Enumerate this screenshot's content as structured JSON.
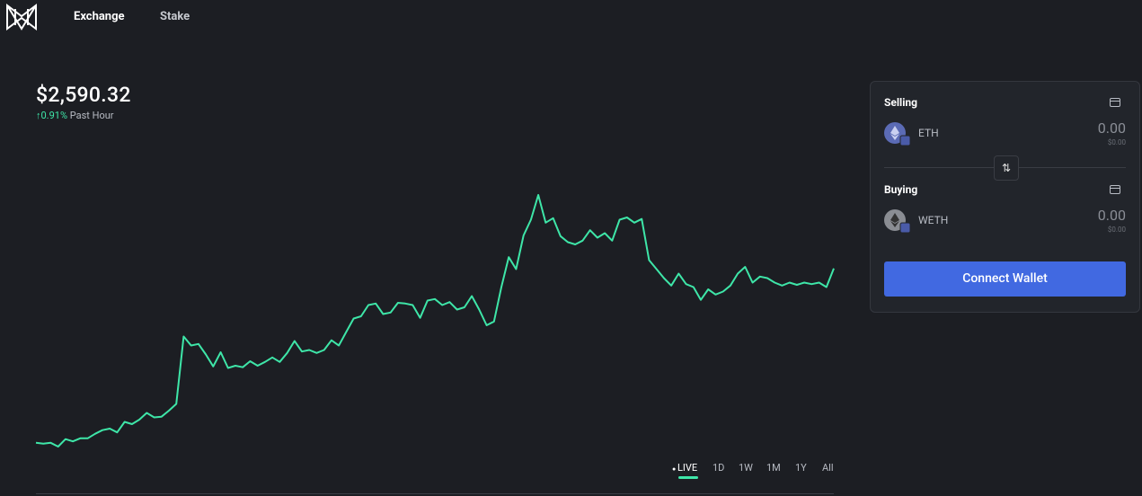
{
  "nav": {
    "items": [
      "Exchange",
      "Stake"
    ]
  },
  "price": {
    "amount": "$2,590.32",
    "change": "0.91%",
    "change_label": "Past Hour"
  },
  "chart": {
    "type": "line",
    "color": "#3ee6a8",
    "values": [
      2567.0,
      2566.9,
      2567.0,
      2566.5,
      2567.5,
      2567.2,
      2567.6,
      2567.6,
      2568.2,
      2568.7,
      2568.9,
      2568.4,
      2569.8,
      2569.5,
      2570.1,
      2571.0,
      2570.4,
      2570.5,
      2571.3,
      2572.2,
      2581.2,
      2580.0,
      2580.2,
      2578.8,
      2577.2,
      2579.1,
      2577.0,
      2577.3,
      2577.1,
      2577.9,
      2577.3,
      2577.8,
      2578.4,
      2577.8,
      2579.0,
      2580.6,
      2579.2,
      2579.4,
      2579.0,
      2579.4,
      2580.7,
      2580.0,
      2581.8,
      2583.6,
      2583.9,
      2585.4,
      2585.6,
      2584.2,
      2584.4,
      2585.7,
      2585.6,
      2585.4,
      2583.7,
      2586.0,
      2586.2,
      2585.4,
      2585.8,
      2584.8,
      2585.1,
      2586.6,
      2584.8,
      2582.7,
      2583.2,
      2587.8,
      2591.8,
      2590.2,
      2594.7,
      2596.8,
      2600.1,
      2596.4,
      2597.0,
      2594.6,
      2593.8,
      2593.5,
      2594.0,
      2595.4,
      2594.4,
      2595.0,
      2594.0,
      2596.8,
      2597.1,
      2596.4,
      2596.9,
      2591.4,
      2590.2,
      2589.0,
      2588.0,
      2589.6,
      2588.2,
      2587.8,
      2586.1,
      2587.5,
      2586.8,
      2587.2,
      2588.0,
      2589.6,
      2590.5,
      2588.4,
      2589.2,
      2589.0,
      2588.4,
      2588.0,
      2588.4,
      2588.1,
      2588.4,
      2588.2,
      2588.4,
      2587.8,
      2590.3
    ],
    "ranges": [
      "LIVE",
      "1D",
      "1W",
      "1M",
      "1Y",
      "All"
    ]
  },
  "swap": {
    "selling": {
      "label": "Selling",
      "token": "ETH",
      "amount": "0.00",
      "usd": "$0.00"
    },
    "buying": {
      "label": "Buying",
      "token": "WETH",
      "amount": "0.00",
      "usd": "$0.00"
    },
    "button": "Connect Wallet"
  }
}
